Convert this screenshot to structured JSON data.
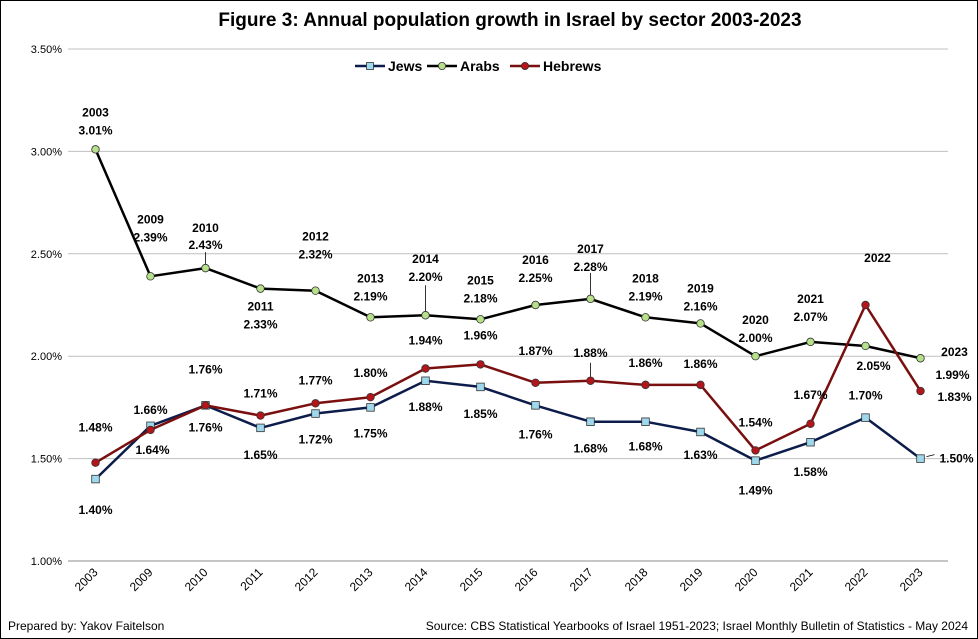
{
  "chart_data": {
    "type": "line",
    "title": "Figure 3:  Annual population growth in Israel by sector 2003-2023",
    "categories": [
      "2003",
      "2009",
      "2010",
      "2011",
      "2012",
      "2013",
      "2014",
      "2015",
      "2016",
      "2017",
      "2018",
      "2019",
      "2020",
      "2021",
      "2022",
      "2023"
    ],
    "y_ticks": [
      "1.00%",
      "1.50%",
      "2.00%",
      "2.50%",
      "3.00%",
      "3.50%"
    ],
    "ylim": [
      1.0,
      3.5
    ],
    "grid": true,
    "legend_position": "top-center",
    "series": [
      {
        "name": "Jews",
        "color": "#0d1d4b",
        "marker": "square",
        "marker_color": "#9ed8ec",
        "values": [
          1.4,
          1.66,
          1.76,
          1.65,
          1.72,
          1.75,
          1.88,
          1.85,
          1.76,
          1.68,
          1.68,
          1.63,
          1.49,
          1.58,
          1.7,
          1.5
        ],
        "labels": [
          "1.40%",
          "1.66%",
          "1.76%",
          "1.65%",
          "1.72%",
          "1.75%",
          "1.88%",
          "1.85%",
          "1.76%",
          "1.68%",
          "1.68%",
          "1.63%",
          "1.49%",
          "1.58%",
          "1.70%",
          "1.50%"
        ]
      },
      {
        "name": "Arabs",
        "color": "#000000",
        "marker": "circle",
        "marker_color": "#b6e08a",
        "values": [
          3.01,
          2.39,
          2.43,
          2.33,
          2.32,
          2.19,
          2.2,
          2.18,
          2.25,
          2.28,
          2.19,
          2.16,
          2.0,
          2.07,
          2.05,
          1.99
        ],
        "labels": [
          "3.01%",
          "2.39%",
          "2.43%",
          "2.33%",
          "2.32%",
          "2.19%",
          "2.20%",
          "2.18%",
          "2.25%",
          "2.28%",
          "2.19%",
          "2.16%",
          "2.00%",
          "2.07%",
          "2.05%",
          "1.99%"
        ]
      },
      {
        "name": "Hebrews",
        "color": "#7a0f0f",
        "marker": "circle",
        "marker_color": "#b3151b",
        "values": [
          1.48,
          1.64,
          1.76,
          1.71,
          1.77,
          1.8,
          1.94,
          1.96,
          1.87,
          1.88,
          1.86,
          1.86,
          1.54,
          1.67,
          2.25,
          1.83
        ],
        "labels": [
          "1.48%",
          "1.64%",
          "1.76%",
          "1.71%",
          "1.77%",
          "1.80%",
          "1.94%",
          "1.96%",
          "1.87%",
          "1.88%",
          "1.86%",
          "1.86%",
          "1.54%",
          "1.67%",
          "",
          "1.83%"
        ]
      }
    ],
    "year_annotations": [
      "2003",
      "2009",
      "2010",
      "2011",
      "2012",
      "2013",
      "2014",
      "2015",
      "2016",
      "2017",
      "2018",
      "2019",
      "2020",
      "2021",
      "2022",
      "2023"
    ]
  },
  "footer": {
    "left": "Prepared by: Yakov Faitelson",
    "right": "Source: CBS Statistical Yearbooks of Israel 1951-2023;  Israel Monthly Bulletin of Statistics - May 2024"
  }
}
